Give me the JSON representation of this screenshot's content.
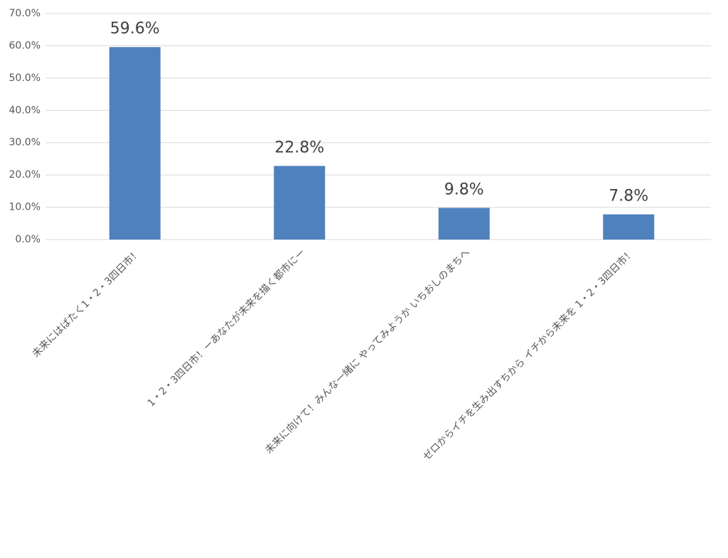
{
  "chart_data": {
    "type": "bar",
    "categories": [
      "未来にはばたく1・2・3四日市！",
      "1・2・3四日市！ーあなたが未来を描く都市にー",
      "未来に向けて！みんな一緒に やってみようか いちおしのまちへ",
      "ゼロからイチを生み出すちから イチから未来を 1・2・3四日市！"
    ],
    "values": [
      59.6,
      22.8,
      9.8,
      7.8
    ],
    "value_labels": [
      "59.6%",
      "22.8%",
      "9.8%",
      "7.8%"
    ],
    "color": "#4f81bd",
    "ylim": [
      0,
      70
    ],
    "yticks": [
      {
        "value": 0,
        "label": "0.0%"
      },
      {
        "value": 10,
        "label": "10.0%"
      },
      {
        "value": 20,
        "label": "20.0%"
      },
      {
        "value": 30,
        "label": "30.0%"
      },
      {
        "value": 40,
        "label": "40.0%"
      },
      {
        "value": 50,
        "label": "50.0%"
      },
      {
        "value": 60,
        "label": "60.0%"
      },
      {
        "value": 70,
        "label": "70.0%"
      }
    ],
    "grid": true
  }
}
